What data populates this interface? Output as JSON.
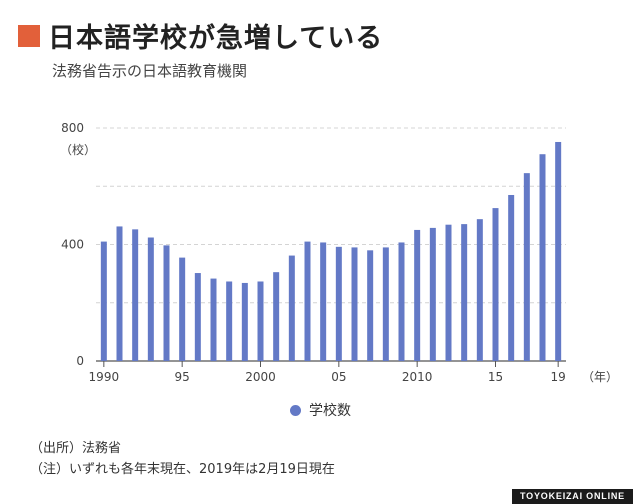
{
  "header": {
    "title": "日本語学校が急増している",
    "subtitle": "法務省告示の日本語教育機関",
    "accent_color": "#e2603a"
  },
  "chart_data": {
    "type": "bar",
    "title": "日本語学校が急増している",
    "subtitle": "法務省告示の日本語教育機関",
    "ylabel": "（校）",
    "xlabel": "（年）",
    "ylim": [
      0,
      800
    ],
    "y_ticks": [
      "0",
      "400",
      "800"
    ],
    "x_tick_labels": [
      "1990",
      "95",
      "2000",
      "05",
      "2010",
      "15",
      "19"
    ],
    "x_tick_years": [
      1990,
      1995,
      2000,
      2005,
      2010,
      2015,
      2019
    ],
    "categories": [
      1990,
      1991,
      1992,
      1993,
      1994,
      1995,
      1996,
      1997,
      1998,
      1999,
      2000,
      2001,
      2002,
      2003,
      2004,
      2005,
      2006,
      2007,
      2008,
      2009,
      2010,
      2011,
      2012,
      2013,
      2014,
      2015,
      2016,
      2017,
      2018,
      2019
    ],
    "series": [
      {
        "name": "学校数",
        "color": "#6379c6",
        "values": [
          410,
          462,
          452,
          424,
          397,
          355,
          302,
          283,
          273,
          268,
          273,
          305,
          362,
          410,
          407,
          392,
          390,
          380,
          390,
          407,
          450,
          457,
          468,
          470,
          487,
          525,
          570,
          645,
          710,
          752
        ]
      }
    ],
    "grid": true,
    "legend_position": "bottom-center"
  },
  "legend": {
    "label": "学校数",
    "color": "#6379c6"
  },
  "notes": {
    "source": "（出所）法務省",
    "note": "（注）いずれも各年末現在、2019年は2月19日現在"
  },
  "brand": "TOYOKEIZAI ONLINE"
}
